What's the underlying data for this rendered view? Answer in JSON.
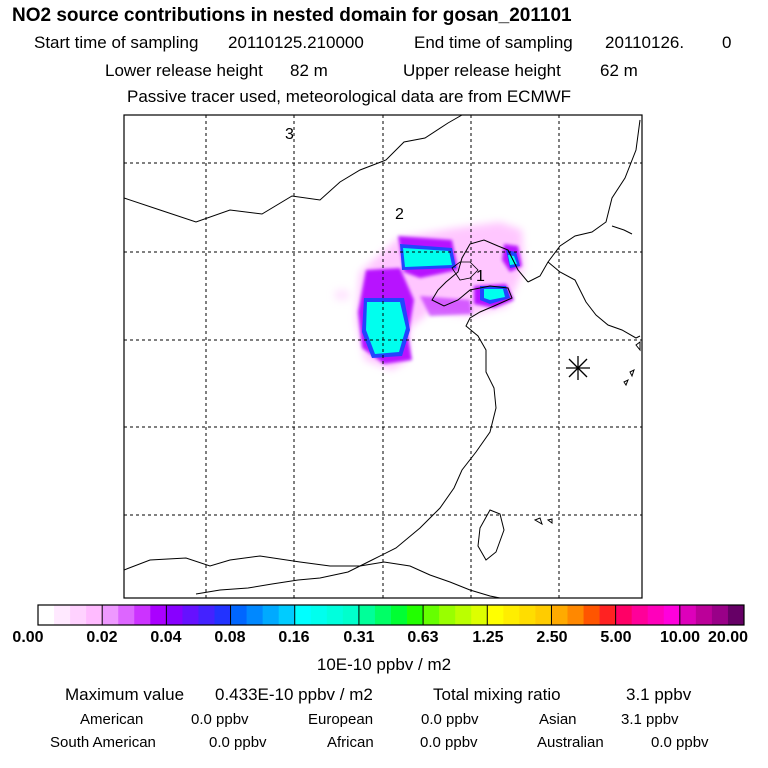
{
  "title": "NO2 source contributions in nested domain for gosan_201101",
  "sampling": {
    "start_label": "Start time of sampling",
    "start_value": "20110125.210000",
    "end_label": "End time of sampling",
    "end_value": "20110126.",
    "end_suffix": "0"
  },
  "release": {
    "lower_label": "Lower release height",
    "lower_value": "82 m",
    "upper_label": "Upper release height",
    "upper_value": "62 m"
  },
  "note": "Passive tracer used, meteorological data are from ECMWF",
  "map": {
    "site_markers": [
      "1",
      "2",
      "3"
    ],
    "receptor_symbol": "asterisk-receptor"
  },
  "colorbar": {
    "labels": [
      "0.00",
      "0.02",
      "0.04",
      "0.08",
      "0.16",
      "0.31",
      "0.63",
      "1.25",
      "2.50",
      "5.00",
      "10.00",
      "20.00"
    ],
    "colors": [
      [
        "#ffffff",
        "#ffe9ff",
        "#ffd2ff",
        "#ffbbff"
      ],
      [
        "#ee99ff",
        "#dd66ff",
        "#cc33ff",
        "#aa00ff"
      ],
      [
        "#8800ff",
        "#6611ff",
        "#4422ff",
        "#2233ff"
      ],
      [
        "#0066ff",
        "#0088ff",
        "#00aaff",
        "#00ccff"
      ],
      [
        "#00ffff",
        "#00ffee",
        "#00ffdd",
        "#00ffcc"
      ],
      [
        "#00ff99",
        "#00ff66",
        "#00ff33",
        "#22ff00"
      ],
      [
        "#66ff00",
        "#99ff00",
        "#bbff00",
        "#ddff00"
      ],
      [
        "#ffff00",
        "#ffee00",
        "#ffdd00",
        "#ffcc00"
      ],
      [
        "#ffaa00",
        "#ff8800",
        "#ff5500",
        "#ff2222"
      ],
      [
        "#ff0066",
        "#ff0099",
        "#ff00bb",
        "#ff00dd"
      ],
      [
        "#dd00bb",
        "#bb0099",
        "#990088",
        "#660066"
      ]
    ],
    "units": "10E-10 ppbv / m2"
  },
  "stats": {
    "max_label": "Maximum value",
    "max_value": "0.433E-10 ppbv / m2",
    "total_label": "Total mixing ratio",
    "total_value": "3.1 ppbv",
    "american_label": "American",
    "american_value": "0.0 ppbv",
    "european_label": "European",
    "european_value": "0.0 ppbv",
    "asian_label": "Asian",
    "asian_value": "3.1 ppbv",
    "south_american_label": "South American",
    "south_american_value": "0.0 ppbv",
    "african_label": "African",
    "african_value": "0.0 ppbv",
    "australian_label": "Australian",
    "australian_value": "0.0 ppbv"
  }
}
